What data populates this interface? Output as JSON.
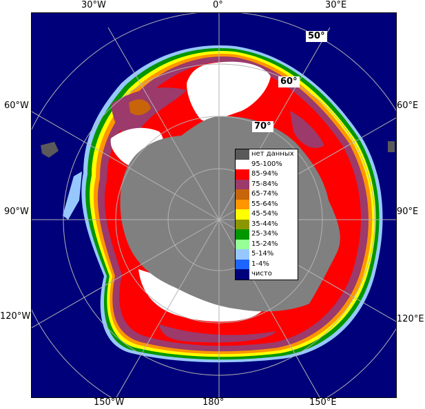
{
  "axes": {
    "top": [
      "30°W",
      "0°",
      "30°E"
    ],
    "left": [
      "60°W",
      "90°W",
      "120°W"
    ],
    "right": [
      "60°E",
      "90°E",
      "120°E"
    ],
    "bottom": [
      "150°W",
      "180°",
      "150°E"
    ]
  },
  "latitude_labels": [
    "50°",
    "60°",
    "70°"
  ],
  "legend": [
    {
      "label": "нет данных",
      "color": "#5a5a5a"
    },
    {
      "label": "95-100%",
      "color": "#ffffff"
    },
    {
      "label": "85-94%",
      "color": "#ff0000"
    },
    {
      "label": "75-84%",
      "color": "#9b3a6b"
    },
    {
      "label": "65-74%",
      "color": "#c8640a"
    },
    {
      "label": "55-64%",
      "color": "#ff9600"
    },
    {
      "label": "45-54%",
      "color": "#ffff00"
    },
    {
      "label": "35-44%",
      "color": "#8c9600"
    },
    {
      "label": "25-34%",
      "color": "#009600"
    },
    {
      "label": "15-24%",
      "color": "#96ff96"
    },
    {
      "label": "5-14%",
      "color": "#96c8ff"
    },
    {
      "label": "1-4%",
      "color": "#1e64ff"
    },
    {
      "label": "чисто",
      "color": "#00007a"
    }
  ],
  "colors": {
    "ocean": "#00007a",
    "land": "#808080",
    "no_data": "#5a5a5a"
  }
}
